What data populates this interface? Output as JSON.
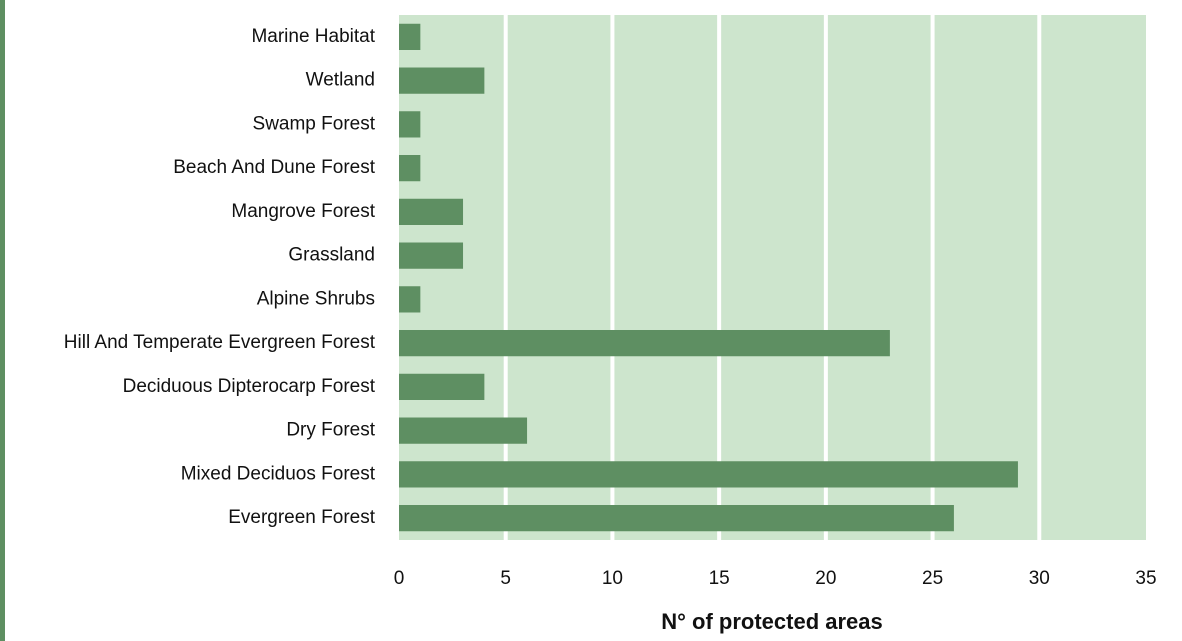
{
  "chart_data": {
    "type": "barh",
    "xlabel": "N° of protected areas",
    "categories": [
      "Marine Habitat",
      "Wetland",
      "Swamp Forest",
      "Beach And Dune Forest",
      "Mangrove Forest",
      "Grassland",
      "Alpine Shrubs",
      "Hill And Temperate Evergreen Forest",
      "Deciduous Dipterocarp Forest",
      "Dry Forest",
      "Mixed Deciduos Forest",
      "Evergreen Forest"
    ],
    "values": [
      1,
      4,
      1,
      1,
      3,
      3,
      1,
      23,
      4,
      6,
      29,
      26
    ],
    "color": "#5e8f62",
    "xlim": [
      0,
      35
    ],
    "xticks": [
      0,
      5,
      10,
      15,
      20,
      25,
      30,
      35
    ],
    "grid": true
  }
}
